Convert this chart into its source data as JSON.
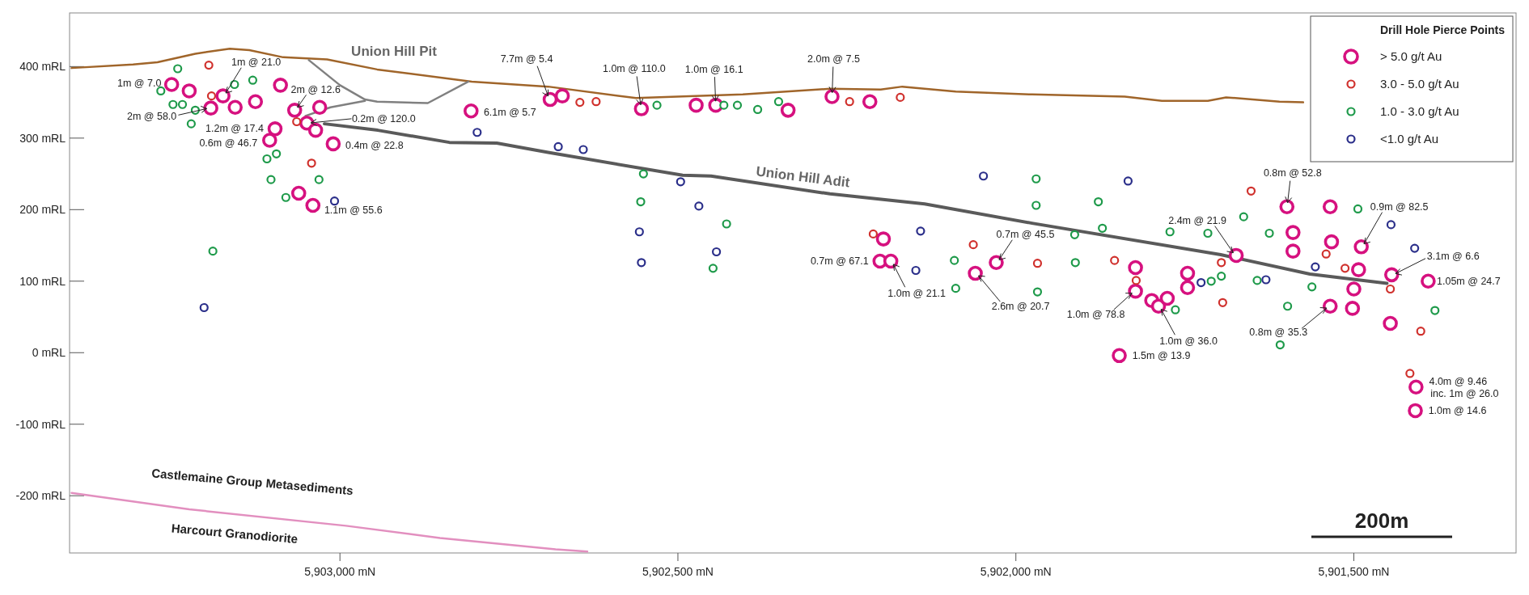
{
  "chart_data": {
    "type": "scatter",
    "legend_title": "Drill Hole Pierce Points",
    "legend": "top right",
    "marker": "circle",
    "grid": false,
    "xlim": [
      5903400,
      5901260
    ],
    "ylim": [
      -280,
      475
    ],
    "xticks": [
      {
        "value": 5903000,
        "label": "5,903,000 mN"
      },
      {
        "value": 5902500,
        "label": "5,902,500 mN"
      },
      {
        "value": 5902000,
        "label": "5,902,000 mN"
      },
      {
        "value": 5901500,
        "label": "5,901,500 mN"
      }
    ],
    "yticks": [
      {
        "value": 400,
        "label": "400 mRL"
      },
      {
        "value": 300,
        "label": "300 mRL"
      },
      {
        "value": 200,
        "label": "200 mRL"
      },
      {
        "value": 100,
        "label": "100 mRL"
      },
      {
        "value": 0,
        "label": "0 mRL"
      },
      {
        "value": -100,
        "label": "-100 mRL"
      },
      {
        "value": -200,
        "label": "-200 mRL"
      }
    ],
    "series": [
      {
        "type": "line",
        "marker": "none",
        "line_style": "solid",
        "color": "#a0652a",
        "x": [
          5903397,
          5903306,
          5903270,
          5903214,
          5903163,
          5903134,
          5903084,
          5903019,
          5902945,
          5902805,
          5902692,
          5902562,
          5902404,
          5902275,
          5902200,
          5902168,
          5902089,
          5901976,
          5901839,
          5901784,
          5901716,
          5901689,
          5901610,
          5901575
        ],
        "values": [
          398,
          403,
          406,
          418,
          425,
          423,
          413,
          410,
          396,
          379,
          372,
          356,
          361,
          369,
          368,
          372,
          365,
          361,
          358,
          352,
          352,
          357,
          351,
          350
        ]
      },
      {
        "type": "line",
        "marker": "none",
        "line_style": "solid",
        "color": "#808080",
        "x": [
          5903046,
          5903000,
          5902963,
          5902945,
          5902870,
          5902810
        ],
        "values": [
          409,
          374,
          354,
          351,
          349,
          379
        ]
      },
      {
        "type": "line",
        "marker": "none",
        "line_style": "solid",
        "color": "#808080",
        "x": [
          5903051,
          5903014,
          5902963
        ],
        "values": [
          331,
          343,
          352
        ]
      },
      {
        "type": "line",
        "marker": "none",
        "line_style": "solid",
        "color": "#5a5a5a",
        "x": [
          5903023,
          5902944,
          5902838,
          5902768,
          5902692,
          5902493,
          5902451,
          5902275,
          5902135,
          5901976,
          5901697,
          5901565,
          5901451
        ],
        "values": [
          320,
          311,
          294,
          293,
          280,
          248,
          247,
          222,
          208,
          181,
          137,
          110,
          97
        ]
      },
      {
        "type": "line",
        "marker": "none",
        "line_style": "solid",
        "color": "#e28fbf",
        "x": [
          5903397,
          5903223,
          5902991,
          5902852,
          5902681,
          5902634
        ],
        "values": [
          -196,
          -219,
          -242,
          -259,
          -275,
          -278
        ]
      },
      {
        "name": "> 5.0 g/t Au",
        "color": "#d6117f",
        "x": [
          5903249,
          5903223,
          5903173,
          5903191,
          5903155,
          5903125,
          5903088,
          5903067,
          5903030,
          5903049,
          5903036,
          5903096,
          5903104,
          5903010,
          5903061,
          5903040,
          5902806,
          5902689,
          5902671,
          5902554,
          5902473,
          5902444,
          5902337,
          5902272,
          5902216,
          5902196,
          5902201,
          5902185,
          5902029,
          5902060,
          5901823,
          5901823,
          5901799,
          5901789,
          5901776,
          5901746,
          5901746,
          5901674,
          5901599,
          5901535,
          5901590,
          5901590,
          5901533,
          5901489,
          5901493,
          5901500,
          5901535,
          5901502,
          5901444,
          5901390,
          5901446,
          5901847,
          5901408,
          5901409
        ],
        "values": [
          375,
          366,
          359,
          342,
          343,
          351,
          374,
          339,
          343,
          321,
          311,
          313,
          297,
          292,
          223,
          206,
          338,
          354,
          359,
          341,
          346,
          346,
          339,
          358,
          351,
          159,
          128,
          128,
          126,
          111,
          119,
          86,
          73,
          65,
          76,
          111,
          91,
          136,
          204,
          204,
          168,
          142,
          155,
          148,
          116,
          89,
          65,
          62,
          109,
          100,
          41,
          -4,
          -48,
          -81
        ]
      },
      {
        "name": "3.0 - 5.0 g/t Au",
        "color": "#d0312d",
        "x": [
          5903194,
          5903190,
          5903064,
          5903042,
          5902645,
          5902621,
          5902246,
          5902171,
          5902211,
          5902063,
          5901968,
          5901854,
          5901822,
          5901696,
          5901694,
          5901652,
          5901541,
          5901513,
          5901446,
          5901401,
          5901417
        ],
        "values": [
          402,
          359,
          323,
          265,
          350,
          351,
          351,
          357,
          166,
          151,
          125,
          129,
          101,
          126,
          70,
          226,
          138,
          118,
          89,
          30,
          -29
        ]
      },
      {
        "name": "1.0 - 3.0 g/t Au",
        "color": "#1e9a4a",
        "x": [
          5903240,
          5903265,
          5903247,
          5903233,
          5903214,
          5903220,
          5903156,
          5903129,
          5903108,
          5903094,
          5903102,
          5903031,
          5903080,
          5903188,
          5902531,
          5902432,
          5902412,
          5902382,
          5902351,
          5902551,
          5902555,
          5902428,
          5902448,
          5902091,
          5902089,
          5901970,
          5901970,
          5901968,
          5901913,
          5901878,
          5901872,
          5901912,
          5901772,
          5901716,
          5901663,
          5901625,
          5901494,
          5901711,
          5901696,
          5901643,
          5901764,
          5901562,
          5901598,
          5901380,
          5901609
        ],
        "values": [
          397,
          366,
          347,
          347,
          339,
          320,
          375,
          381,
          271,
          278,
          242,
          242,
          217,
          142,
          346,
          346,
          346,
          340,
          351,
          250,
          211,
          180,
          118,
          129,
          90,
          243,
          206,
          85,
          165,
          211,
          174,
          126,
          169,
          167,
          190,
          167,
          201,
          100,
          107,
          101,
          60,
          92,
          65,
          59,
          11
        ]
      },
      {
        "name": "<1.0 g/t Au",
        "color": "#2b2f8a",
        "x": [
          5903008,
          5903201,
          5902797,
          5902677,
          5902640,
          5902496,
          5902469,
          5902557,
          5902554,
          5902443,
          5902048,
          5902141,
          5902148,
          5901834,
          5901726,
          5901630,
          5901557,
          5901445,
          5901410
        ],
        "values": [
          212,
          63,
          308,
          288,
          284,
          239,
          205,
          169,
          126,
          141,
          247,
          170,
          115,
          240,
          98,
          102,
          120,
          179,
          146
        ]
      }
    ],
    "annotations": [
      "Union Hill Pit",
      {
        "text": "Union Hill Adit",
        "x": 5902315,
        "y": 228
      },
      "Castlemaine Group Metasediments",
      "Harcourt Granodiorite",
      {
        "text": "1m @ 7.0",
        "x": 5903249,
        "y": 375
      },
      {
        "text": "1m @ 21.0",
        "x": 5903173,
        "y": 359
      },
      {
        "text": "2m @ 58.0",
        "x": 5903191,
        "y": 342
      },
      {
        "text": "1.2m @ 17.4",
        "x": 5903096,
        "y": 313
      },
      {
        "text": "0.6m @ 46.7",
        "x": 5903104,
        "y": 297
      },
      {
        "text": "2m @ 12.6",
        "x": 5903067,
        "y": 339
      },
      {
        "text": "0.2m @ 120.0",
        "x": 5903049,
        "y": 321
      },
      {
        "text": "0.4m @ 22.8",
        "x": 5903010,
        "y": 292
      },
      {
        "text": "1.1m @ 55.6",
        "x": 5903040,
        "y": 206
      },
      {
        "text": "6.1m @ 5.7",
        "x": 5902806,
        "y": 338
      },
      {
        "text": "7.7m @ 5.4",
        "x": 5902689,
        "y": 354
      },
      {
        "text": "1.0m @ 110.0",
        "x": 5902554,
        "y": 341
      },
      {
        "text": "1.0m @ 16.1",
        "x": 5902444,
        "y": 346
      },
      {
        "text": "2.0m @ 7.5",
        "x": 5902272,
        "y": 358
      },
      {
        "text": "0.7m @ 67.1",
        "x": 5902201,
        "y": 128
      },
      {
        "text": "1.0m @ 21.1",
        "x": 5902185,
        "y": 128
      },
      {
        "text": "0.7m @ 45.5",
        "x": 5902029,
        "y": 126
      },
      {
        "text": "2.6m @ 20.7",
        "x": 5902060,
        "y": 111
      },
      {
        "text": "0.8m @ 52.8",
        "x": 5901599,
        "y": 204
      },
      {
        "text": "0.9m @ 82.5",
        "x": 5901489,
        "y": 148
      },
      {
        "text": "2.4m @ 21.9",
        "x": 5901674,
        "y": 136
      },
      {
        "text": "3.1m @ 6.6",
        "x": 5901444,
        "y": 109
      },
      {
        "text": "1.05m @ 24.7",
        "x": 5901390,
        "y": 100
      },
      {
        "text": "1.0m @ 78.8",
        "x": 5901823,
        "y": 86
      },
      {
        "text": "1.0m @ 36.0",
        "x": 5901789,
        "y": 65
      },
      {
        "text": "0.8m @ 35.3",
        "x": 5901535,
        "y": 65
      },
      {
        "text": "1.5m @ 13.9",
        "x": 5901847,
        "y": -4
      },
      {
        "text": "4.0m @ 9.46",
        "x": 5901408,
        "y": -48
      },
      {
        "text": "inc. 1m @ 26.0",
        "x": 5901408,
        "y": -48
      },
      {
        "text": "1.0m @ 14.6",
        "x": 5901409,
        "y": -81
      },
      "200m"
    ]
  }
}
